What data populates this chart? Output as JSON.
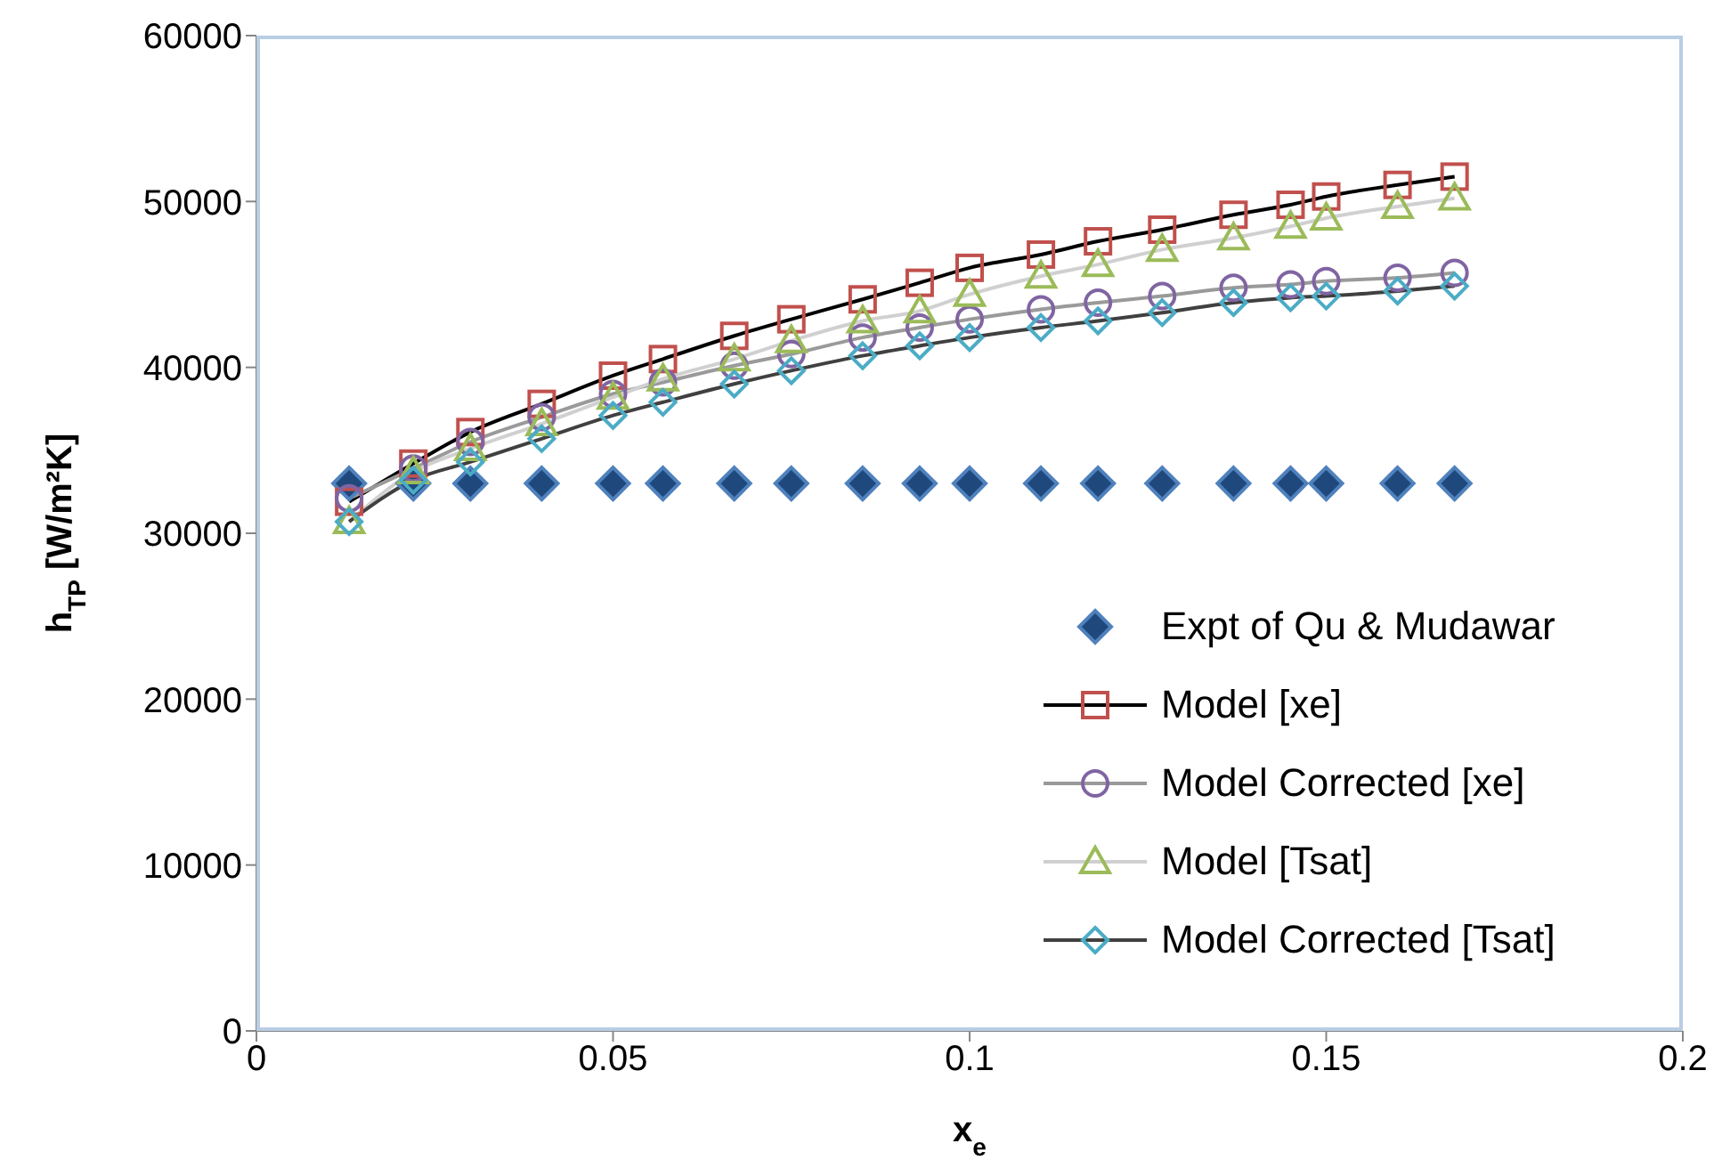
{
  "chart_data": {
    "type": "line",
    "xlabel": "x$_{e}$",
    "ylabel": "h$_{TP}$ [W/m²K]",
    "x": [
      0.013,
      0.022,
      0.03,
      0.04,
      0.05,
      0.057,
      0.067,
      0.075,
      0.085,
      0.093,
      0.1,
      0.11,
      0.118,
      0.127,
      0.137,
      0.145,
      0.15,
      0.16,
      0.168
    ],
    "series": [
      {
        "name": "Expt of Qu & Mudawar",
        "type": "scatter",
        "marker": "diamond",
        "color": "#1f497d",
        "values": [
          33000,
          33000,
          33000,
          33000,
          33000,
          33000,
          33000,
          33000,
          33000,
          33000,
          33000,
          33000,
          33000,
          33000,
          33000,
          33000,
          33000,
          33000,
          33000
        ]
      },
      {
        "name": "Model [xe]",
        "marker": "square",
        "color": "#c0504d",
        "values": [
          31900,
          34200,
          36100,
          37800,
          39500,
          40500,
          41900,
          42900,
          44100,
          45100,
          46000,
          46800,
          47600,
          48300,
          49200,
          49800,
          50300,
          51000,
          51500
        ]
      },
      {
        "name": "Model Corrected [xe]",
        "marker": "circle",
        "color": "#8064a2",
        "values": [
          32100,
          33900,
          35500,
          37000,
          38400,
          39100,
          40100,
          40800,
          41800,
          42400,
          42900,
          43500,
          43900,
          44300,
          44800,
          45000,
          45200,
          45400,
          45700
        ]
      },
      {
        "name": "Model [Tsat]",
        "marker": "triangle",
        "color": "#9bbb59",
        "values": [
          30700,
          33700,
          35100,
          36600,
          38200,
          39300,
          40500,
          41600,
          42800,
          43400,
          44400,
          45500,
          46200,
          47100,
          47800,
          48500,
          49000,
          49700,
          50200
        ]
      },
      {
        "name": "Model Corrected [Tsat]",
        "marker": "diamond",
        "color": "#4bacc6",
        "values": [
          30700,
          33200,
          34300,
          35700,
          37100,
          37900,
          39000,
          39800,
          40700,
          41300,
          41800,
          42400,
          42800,
          43300,
          43900,
          44200,
          44300,
          44600,
          44900
        ]
      }
    ],
    "xlim": [
      0,
      0.2
    ],
    "xticks": [
      0,
      0.05,
      0.1,
      0.15,
      0.2
    ],
    "ylim": [
      0,
      60000
    ],
    "yticks": [
      0,
      10000,
      20000,
      30000,
      40000,
      50000,
      60000
    ],
    "legend": "right"
  }
}
